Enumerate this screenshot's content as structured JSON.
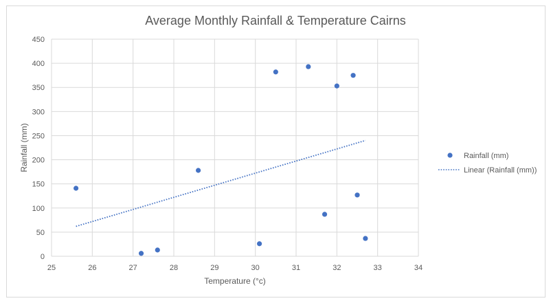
{
  "chart_data": {
    "type": "scatter",
    "title": "Average Monthly Rainfall & Temperature Cairns",
    "xlabel": "Temperature (°c)",
    "ylabel": "Rainfall (mm)",
    "xlim": [
      25,
      34
    ],
    "ylim": [
      0,
      450
    ],
    "xticks": [
      25,
      26,
      27,
      28,
      29,
      30,
      31,
      32,
      33,
      34
    ],
    "yticks": [
      0,
      50,
      100,
      150,
      200,
      250,
      300,
      350,
      400,
      450
    ],
    "grid": true,
    "legend_position": "right",
    "series": [
      {
        "name": "Rainfall (mm)",
        "color": "#4472c4",
        "points": [
          {
            "x": 25.6,
            "y": 141
          },
          {
            "x": 27.2,
            "y": 6
          },
          {
            "x": 27.6,
            "y": 13
          },
          {
            "x": 28.6,
            "y": 178
          },
          {
            "x": 30.1,
            "y": 26
          },
          {
            "x": 30.5,
            "y": 382
          },
          {
            "x": 31.3,
            "y": 393
          },
          {
            "x": 31.7,
            "y": 87
          },
          {
            "x": 32.0,
            "y": 353
          },
          {
            "x": 32.4,
            "y": 375
          },
          {
            "x": 32.5,
            "y": 127
          },
          {
            "x": 32.7,
            "y": 37
          }
        ]
      }
    ],
    "trendline": {
      "name": "Linear (Rainfall (mm))",
      "type": "linear",
      "color": "#4472c4",
      "style": "dotted",
      "from": {
        "x": 25.6,
        "y": 62
      },
      "to": {
        "x": 32.7,
        "y": 240
      }
    },
    "legend": [
      {
        "label": "Rainfall (mm)",
        "marker": "dot"
      },
      {
        "label": "Linear (Rainfall (mm))",
        "marker": "dotted-line"
      }
    ]
  }
}
